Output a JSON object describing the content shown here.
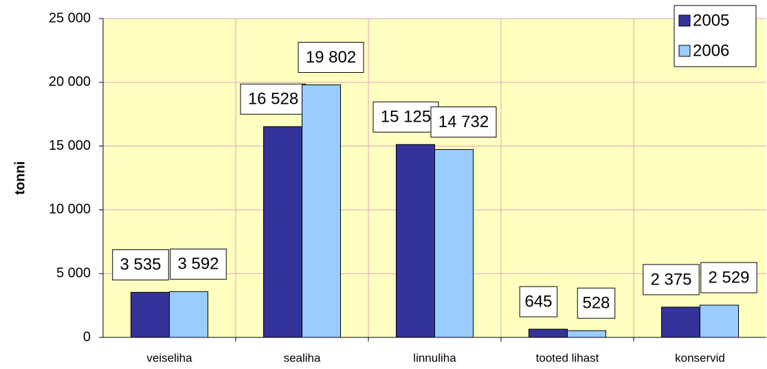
{
  "chart_data": {
    "type": "bar",
    "y_axis_label": "tonni",
    "categories": [
      "veiseliha",
      "sealiha",
      "linnuliha",
      "tooted lihast",
      "konservid"
    ],
    "series": [
      {
        "name": "2005",
        "color": "#333399",
        "values": [
          3535,
          16528,
          15125,
          645,
          2375
        ],
        "value_labels": [
          "3 535",
          "16 528",
          "15 125",
          "645",
          "2 375"
        ]
      },
      {
        "name": "2006",
        "color": "#99ccff",
        "values": [
          3592,
          19802,
          14732,
          528,
          2529
        ],
        "value_labels": [
          "3 592",
          "19 802",
          "14 732",
          "528",
          "2 529"
        ]
      }
    ],
    "ylim": [
      0,
      25000
    ],
    "yticks": [
      0,
      {
        "value": 5000,
        "label": "5 000"
      },
      {
        "value": 10000,
        "label": "10 000"
      },
      {
        "value": 15000,
        "label": "15 000"
      },
      {
        "value": 20000,
        "label": "20 000"
      },
      {
        "value": 25000,
        "label": "25 000"
      }
    ],
    "grid": true,
    "legend": "top-right",
    "background": "#ffffc0",
    "grid_color": "#e0a0c0"
  }
}
